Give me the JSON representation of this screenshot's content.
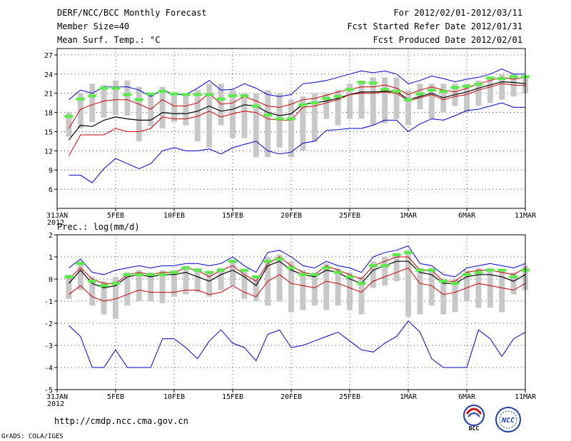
{
  "header": {
    "title": "DERF/NCC/BCC Monthly Forecast",
    "member_size": "Member Size=40",
    "variable": "Mean Surf. Temp.: °C",
    "period": "For 2012/02/01-2012/03/11",
    "refer_date": "Fcst Started Refer Date 2012/01/31",
    "produced_date": "Fcst Produced Date 2012/02/01"
  },
  "footer": {
    "url": "http://cmdp.ncc.cma.gov.cn",
    "grads": "GrADS: COLA/IGES",
    "logo1_text": "BCC",
    "logo2_text": "NCC"
  },
  "colors": {
    "max": "#0000cc",
    "upper": "#cc0000",
    "mean": "#000000",
    "box": "#c8c8c8",
    "mark": "#55ee44"
  },
  "x_ticks": [
    {
      "day": 0,
      "label": "31JAN",
      "label2": "2012"
    },
    {
      "day": 5,
      "label": "5FEB"
    },
    {
      "day": 10,
      "label": "10FEB"
    },
    {
      "day": 15,
      "label": "15FEB"
    },
    {
      "day": 20,
      "label": "20FEB"
    },
    {
      "day": 25,
      "label": "25FEB"
    },
    {
      "day": 30,
      "label": "1MAR"
    },
    {
      "day": 35,
      "label": "6MAR"
    },
    {
      "day": 40,
      "label": "11MAR"
    }
  ],
  "chart_data": [
    {
      "type": "line",
      "title": "Mean Surf. Temp.: °C",
      "ylim": [
        3,
        28
      ],
      "yticks": [
        6,
        9,
        12,
        15,
        18,
        21,
        24,
        27
      ],
      "x": [
        1,
        2,
        3,
        4,
        5,
        6,
        7,
        8,
        9,
        10,
        11,
        12,
        13,
        14,
        15,
        16,
        17,
        18,
        19,
        20,
        21,
        22,
        23,
        24,
        25,
        26,
        27,
        28,
        29,
        30,
        31,
        32,
        33,
        34,
        35,
        36,
        37,
        38,
        39,
        40
      ],
      "series": [
        {
          "name": "max",
          "color": "#0000cc",
          "values": [
            20.0,
            21.5,
            21.0,
            22.0,
            22.0,
            22.0,
            21.5,
            20.5,
            21.5,
            20.8,
            20.8,
            21.8,
            23.0,
            21.5,
            21.6,
            22.5,
            21.8,
            20.8,
            20.5,
            20.8,
            22.5,
            22.7,
            23.0,
            23.5,
            24.0,
            24.5,
            24.2,
            24.5,
            24.0,
            22.5,
            23.0,
            23.7,
            23.3,
            22.8,
            23.2,
            23.5,
            24.0,
            24.8,
            24.0,
            24.0
          ]
        },
        {
          "name": "upper",
          "color": "#cc0000",
          "values": [
            15.5,
            18.5,
            19.2,
            19.8,
            20.0,
            20.0,
            19.3,
            18.5,
            20.0,
            19.0,
            19.0,
            19.5,
            21.0,
            19.3,
            19.5,
            20.5,
            19.8,
            19.0,
            18.8,
            19.3,
            20.0,
            20.2,
            20.7,
            21.2,
            21.6,
            22.0,
            22.0,
            22.3,
            21.8,
            20.8,
            21.5,
            22.0,
            21.5,
            21.2,
            21.8,
            22.5,
            23.0,
            23.5,
            23.2,
            23.5
          ]
        },
        {
          "name": "mean",
          "color": "#000000",
          "values": [
            13.7,
            16.0,
            15.8,
            16.8,
            17.3,
            17.0,
            16.8,
            16.8,
            18.0,
            17.8,
            17.8,
            18.2,
            19.0,
            18.2,
            18.5,
            19.2,
            19.0,
            18.0,
            17.5,
            17.8,
            19.3,
            19.5,
            19.8,
            20.2,
            20.8,
            21.2,
            21.2,
            21.3,
            21.3,
            20.0,
            20.5,
            21.0,
            20.3,
            20.8,
            21.2,
            21.8,
            22.3,
            22.8,
            22.7,
            22.5
          ]
        },
        {
          "name": "lower",
          "color": "#cc0000",
          "values": [
            11.2,
            14.5,
            14.5,
            14.5,
            15.5,
            15.0,
            15.0,
            15.5,
            17.3,
            17.0,
            17.0,
            17.4,
            18.2,
            17.3,
            17.8,
            18.2,
            18.0,
            17.0,
            16.8,
            16.8,
            18.8,
            19.0,
            19.5,
            20.0,
            20.8,
            21.0,
            21.0,
            21.2,
            21.0,
            19.8,
            20.3,
            20.8,
            20.0,
            20.5,
            20.8,
            21.5,
            22.0,
            22.5,
            22.3,
            22.2
          ]
        },
        {
          "name": "min",
          "color": "#0000cc",
          "values": [
            8.2,
            8.2,
            7.0,
            9.2,
            10.8,
            10.0,
            9.2,
            10.0,
            12.0,
            12.5,
            12.0,
            12.0,
            12.3,
            11.5,
            12.5,
            13.0,
            13.5,
            12.0,
            11.5,
            11.8,
            13.2,
            13.5,
            15.2,
            15.3,
            15.5,
            15.5,
            16.0,
            16.8,
            16.8,
            15.0,
            16.2,
            17.0,
            16.8,
            17.5,
            18.3,
            18.5,
            19.0,
            19.5,
            18.8,
            18.8
          ]
        }
      ],
      "boxes": {
        "low": [
          14.2,
          15.5,
          16.5,
          17.2,
          17.6,
          17.5,
          13.5,
          15.8,
          15.5,
          16.5,
          16.0,
          13.5,
          12.5,
          16.0,
          14.0,
          14.0,
          11.0,
          11.0,
          12.5,
          11.0,
          12.0,
          13.5,
          17.0,
          16.0,
          17.0,
          17.0,
          16.0,
          16.3,
          17.0,
          16.0,
          18.5,
          17.0,
          18.0,
          19.0,
          18.0,
          19.0,
          19.5,
          20.0,
          20.5,
          21.0
        ],
        "high": [
          18.0,
          21.0,
          22.5,
          22.3,
          23.0,
          23.0,
          22.0,
          21.0,
          22.0,
          21.0,
          21.0,
          21.5,
          22.5,
          22.5,
          21.5,
          21.0,
          21.0,
          21.5,
          21.0,
          20.0,
          20.5,
          21.0,
          21.0,
          21.5,
          22.5,
          23.0,
          23.5,
          23.5,
          23.5,
          21.5,
          22.5,
          22.5,
          22.5,
          22.5,
          22.5,
          23.0,
          23.5,
          24.0,
          24.0,
          23.5
        ]
      },
      "marks": [
        17.4,
        20.1,
        20.6,
        21.8,
        21.8,
        20.8,
        20.0,
        20.9,
        21.3,
        20.9,
        20.8,
        20.8,
        20.8,
        20.1,
        20.6,
        20.6,
        19.0,
        17.6,
        17.0,
        17.0,
        19.2,
        19.5,
        20.2,
        20.5,
        21.6,
        22.7,
        22.6,
        21.6,
        21.3,
        20.0,
        20.9,
        21.5,
        21.3,
        21.9,
        22.1,
        22.4,
        23.4,
        23.3,
        23.6,
        23.6
      ]
    },
    {
      "type": "line",
      "title": "Prec.: log(mm/d)",
      "ylim": [
        -5,
        2
      ],
      "yticks": [
        -5,
        -4,
        -3,
        -2,
        -1,
        0,
        1,
        2
      ],
      "x": [
        1,
        2,
        3,
        4,
        5,
        6,
        7,
        8,
        9,
        10,
        11,
        12,
        13,
        14,
        15,
        16,
        17,
        18,
        19,
        20,
        21,
        22,
        23,
        24,
        25,
        26,
        27,
        28,
        29,
        30,
        31,
        32,
        33,
        34,
        35,
        36,
        37,
        38,
        39,
        40
      ],
      "series": [
        {
          "name": "max",
          "color": "#0000cc",
          "values": [
            0.5,
            0.9,
            0.3,
            0.2,
            0.4,
            0.5,
            0.6,
            0.5,
            0.6,
            0.6,
            0.7,
            0.7,
            0.6,
            0.7,
            1.0,
            0.6,
            0.3,
            1.2,
            1.3,
            1.0,
            0.6,
            0.5,
            0.8,
            0.6,
            0.5,
            0.3,
            1.0,
            1.2,
            1.3,
            1.5,
            0.7,
            0.6,
            0.2,
            0.1,
            0.5,
            0.6,
            0.7,
            0.6,
            0.5,
            0.7
          ]
        },
        {
          "name": "upper",
          "color": "#cc0000",
          "values": [
            0.0,
            0.5,
            0.0,
            -0.2,
            -0.2,
            0.2,
            0.3,
            0.2,
            0.3,
            0.3,
            0.5,
            0.4,
            0.1,
            0.4,
            0.6,
            0.2,
            -0.1,
            0.7,
            1.0,
            0.6,
            0.3,
            0.2,
            0.6,
            0.4,
            0.2,
            0.0,
            0.6,
            0.8,
            1.0,
            1.0,
            0.4,
            0.4,
            -0.1,
            -0.1,
            0.3,
            0.4,
            0.4,
            0.3,
            0.2,
            0.5
          ]
        },
        {
          "name": "mean",
          "color": "#000000",
          "values": [
            -0.2,
            0.4,
            -0.2,
            -0.4,
            -0.3,
            0.1,
            0.2,
            0.1,
            0.2,
            0.2,
            0.3,
            0.1,
            -0.1,
            0.2,
            0.4,
            0.1,
            -0.3,
            0.6,
            0.8,
            0.4,
            0.2,
            0.1,
            0.4,
            0.3,
            0.0,
            -0.2,
            0.4,
            0.6,
            0.8,
            0.8,
            0.3,
            0.2,
            -0.2,
            -0.2,
            0.1,
            0.2,
            0.2,
            0.1,
            -0.1,
            0.2
          ]
        },
        {
          "name": "lower",
          "color": "#cc0000",
          "values": [
            -0.7,
            -0.3,
            -0.8,
            -1.0,
            -0.9,
            -0.7,
            -0.5,
            -0.6,
            -0.6,
            -0.6,
            -0.5,
            -0.5,
            -0.7,
            -0.6,
            -0.3,
            -0.6,
            -0.8,
            -0.1,
            0.2,
            -0.2,
            -0.3,
            -0.4,
            -0.1,
            -0.2,
            -0.4,
            -0.6,
            -0.1,
            0.1,
            0.3,
            0.5,
            -0.2,
            -0.3,
            -0.7,
            -0.6,
            -0.4,
            -0.2,
            -0.3,
            -0.4,
            -0.5,
            -0.2
          ]
        },
        {
          "name": "min",
          "color": "#0000cc",
          "values": [
            -2.1,
            -2.6,
            -4.0,
            -4.0,
            -3.2,
            -4.0,
            -4.0,
            -4.0,
            -2.7,
            -2.7,
            -3.1,
            -3.6,
            -2.8,
            -2.3,
            -2.9,
            -3.1,
            -3.7,
            -2.5,
            -2.3,
            -3.1,
            -3.0,
            -2.8,
            -2.6,
            -2.4,
            -2.8,
            -3.2,
            -3.3,
            -2.9,
            -2.6,
            -1.9,
            -2.4,
            -3.6,
            -4.0,
            -4.0,
            -4.0,
            -2.3,
            -2.7,
            -3.5,
            -2.7,
            -2.4
          ]
        }
      ],
      "boxes": {
        "low": [
          -0.9,
          -0.5,
          -1.2,
          -1.6,
          -1.8,
          -1.2,
          -1.0,
          -1.0,
          -1.1,
          -0.8,
          -0.7,
          -0.6,
          -0.8,
          -0.5,
          -0.3,
          -0.9,
          -1.0,
          -1.2,
          -1.0,
          -1.5,
          -1.4,
          -1.2,
          -1.4,
          -1.2,
          -1.4,
          -1.6,
          -0.4,
          -0.3,
          -0.1,
          -1.7,
          -1.6,
          -1.2,
          -1.6,
          -1.5,
          -1.0,
          -1.3,
          -1.3,
          -1.5,
          -0.7,
          -0.5
        ],
        "high": [
          0.2,
          0.8,
          0.1,
          -0.1,
          0.1,
          0.3,
          0.4,
          0.3,
          0.4,
          0.4,
          0.6,
          0.5,
          0.3,
          0.5,
          0.8,
          0.4,
          0.1,
          1.0,
          1.1,
          0.8,
          0.4,
          0.3,
          0.7,
          0.5,
          0.3,
          0.1,
          0.8,
          1.0,
          1.1,
          1.3,
          0.5,
          0.5,
          0.0,
          0.0,
          0.4,
          0.5,
          0.5,
          0.4,
          0.3,
          0.6
        ]
      },
      "marks": [
        0.1,
        0.7,
        -0.1,
        -0.3,
        -0.2,
        0.2,
        0.2,
        0.2,
        0.2,
        0.3,
        0.5,
        0.4,
        0.3,
        0.4,
        0.8,
        0.4,
        0.1,
        0.8,
        0.9,
        0.5,
        0.2,
        0.2,
        0.5,
        0.3,
        0.1,
        -0.2,
        0.6,
        0.6,
        1.1,
        1.2,
        0.4,
        0.4,
        -0.1,
        -0.2,
        0.2,
        0.3,
        0.4,
        0.4,
        0.1,
        0.4
      ]
    }
  ]
}
